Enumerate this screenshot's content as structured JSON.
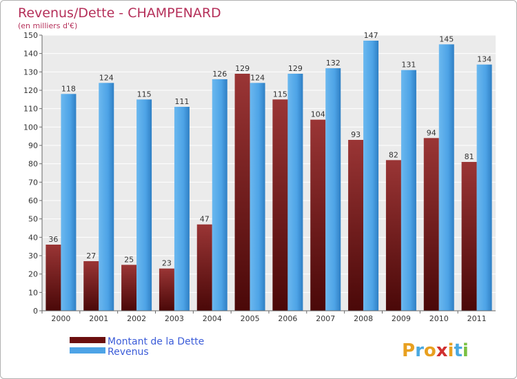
{
  "chart_data": {
    "type": "bar",
    "title": "Revenus/Dette - CHAMPENARD",
    "subtitle": "(en milliers d'€)",
    "categories": [
      "2000",
      "2001",
      "2002",
      "2003",
      "2004",
      "2005",
      "2006",
      "2007",
      "2008",
      "2009",
      "2010",
      "2011"
    ],
    "series": [
      {
        "name": "Montant de la Dette",
        "color": "#7a1a1a",
        "values": [
          36,
          27,
          25,
          23,
          47,
          129,
          115,
          104,
          93,
          82,
          94,
          81
        ]
      },
      {
        "name": "Revenus",
        "color": "#4da3e6",
        "values": [
          118,
          124,
          115,
          111,
          126,
          124,
          129,
          132,
          147,
          131,
          145,
          134
        ]
      }
    ],
    "ylim": [
      0,
      150
    ],
    "yticks": [
      0,
      10,
      20,
      30,
      40,
      50,
      60,
      70,
      80,
      90,
      100,
      110,
      120,
      130,
      140,
      150
    ],
    "grid": true,
    "legend_position": "bottom-left"
  },
  "logo": {
    "letters": [
      "P",
      "r",
      "o",
      "x",
      "i",
      "t",
      "i"
    ],
    "colors": [
      "#e8a020",
      "#4aa8e0",
      "#e8a020",
      "#d03030",
      "#e8a020",
      "#4aa8e0",
      "#7ac043"
    ]
  }
}
